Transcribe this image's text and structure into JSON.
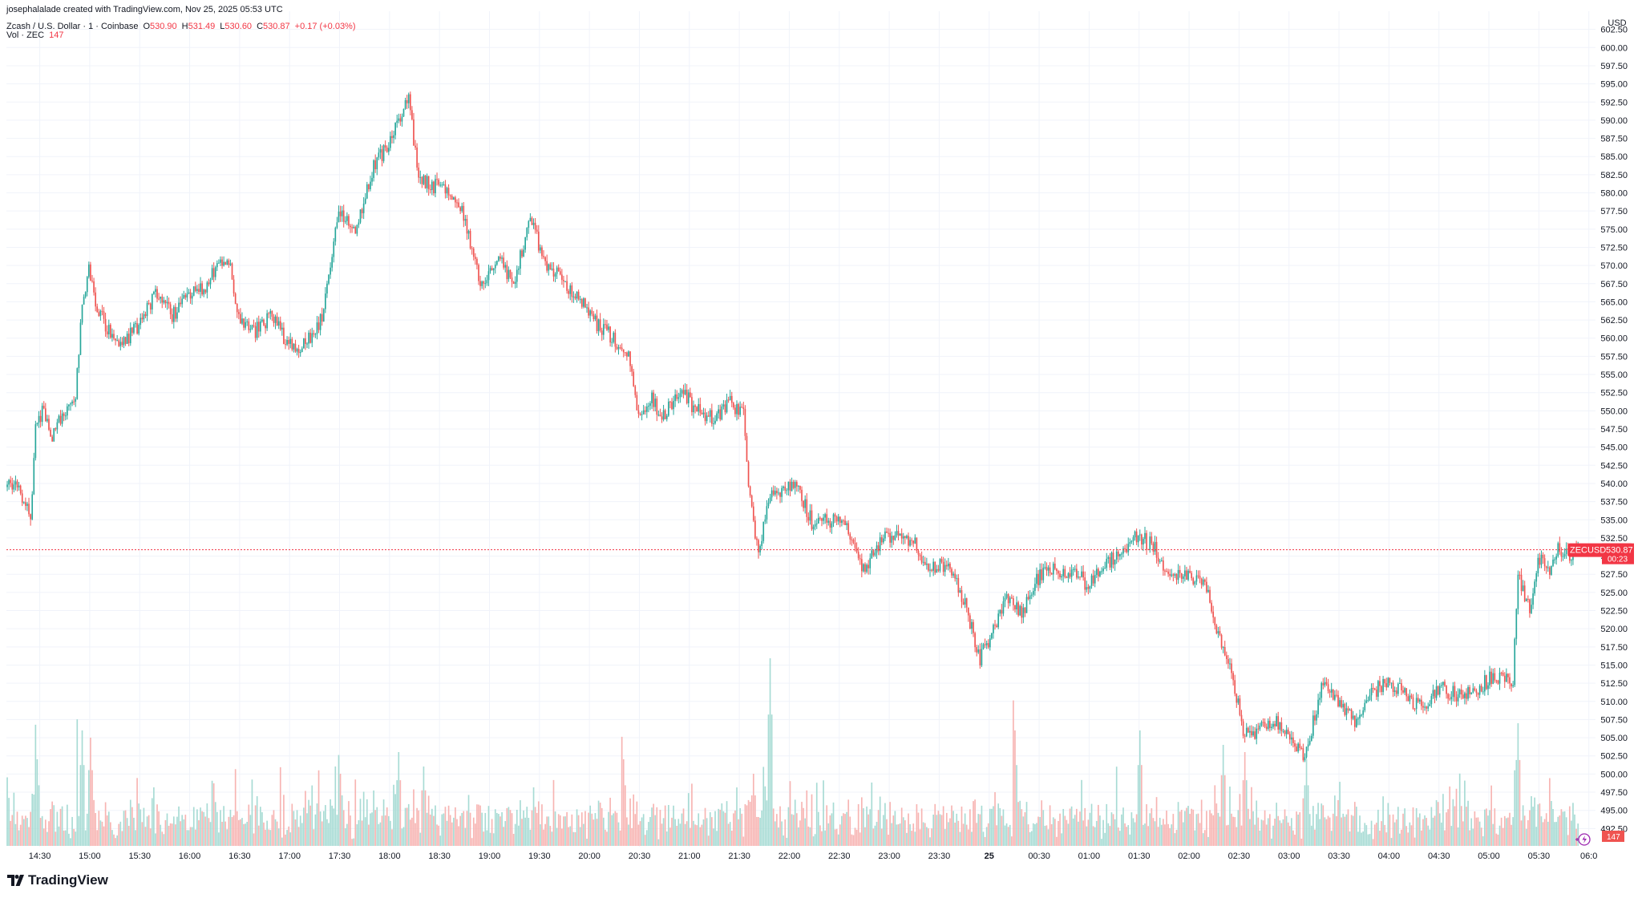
{
  "header": {
    "credit": "josephalalade created with TradingView.com, Nov 25, 2025 05:53 UTC",
    "symbol": "Zcash / U.S. Dollar · 1 · Coinbase",
    "o_label": "O",
    "o_value": "530.90",
    "h_label": "H",
    "h_value": "531.49",
    "l_label": "L",
    "l_value": "530.60",
    "c_label": "C",
    "c_value": "530.87",
    "change": "+0.17 (+0.03%)",
    "vol_label": "Vol · ZEC",
    "vol_value": "147"
  },
  "price_tag": {
    "symbol": "ZECUSD",
    "price": "530.87",
    "countdown": "00:23"
  },
  "volume_tag": "147",
  "logo_text": "TradingView",
  "colors": {
    "up": "#26a69a",
    "down": "#ef5350",
    "vol_up": "#a7dbd4",
    "vol_down": "#f7b4b2",
    "price_line": "#f23645",
    "grid": "#f0f3fa",
    "text": "#131722"
  },
  "chart_data": {
    "type": "candlestick",
    "currency": "USD",
    "ylim": [
      490.0,
      605.0
    ],
    "y_ticks": [
      "602.50",
      "600.00",
      "597.50",
      "595.00",
      "592.50",
      "590.00",
      "587.50",
      "585.00",
      "582.50",
      "580.00",
      "577.50",
      "575.00",
      "572.50",
      "570.00",
      "567.50",
      "565.00",
      "562.50",
      "560.00",
      "557.50",
      "555.00",
      "552.50",
      "550.00",
      "547.50",
      "545.00",
      "542.50",
      "540.00",
      "537.50",
      "535.00",
      "532.50",
      "530.00",
      "527.50",
      "525.00",
      "522.50",
      "520.00",
      "517.50",
      "515.00",
      "512.50",
      "510.00",
      "507.50",
      "505.00",
      "502.50",
      "500.00",
      "497.50",
      "495.00",
      "492.50"
    ],
    "x_ticks": [
      "14:30",
      "15:00",
      "15:30",
      "16:00",
      "16:30",
      "17:00",
      "17:30",
      "18:00",
      "18:30",
      "19:00",
      "19:30",
      "20:00",
      "20:30",
      "21:00",
      "21:30",
      "22:00",
      "22:30",
      "23:00",
      "23:30",
      "25",
      "00:30",
      "01:00",
      "01:30",
      "02:00",
      "02:30",
      "03:00",
      "03:30",
      "04:00",
      "04:30",
      "05:00",
      "05:30",
      "06:0"
    ],
    "x_start": "14:10",
    "x_end": "06:04",
    "grid": true,
    "last_price": 530.87,
    "keypoints": [
      {
        "t": "14:10",
        "p": 539.5
      },
      {
        "t": "14:15",
        "p": 540.0
      },
      {
        "t": "14:20",
        "p": 538.0
      },
      {
        "t": "14:25",
        "p": 535.0
      },
      {
        "t": "14:28",
        "p": 548.0
      },
      {
        "t": "14:33",
        "p": 550.0
      },
      {
        "t": "14:38",
        "p": 546.0
      },
      {
        "t": "14:45",
        "p": 550.0
      },
      {
        "t": "14:52",
        "p": 552.0
      },
      {
        "t": "14:55",
        "p": 562.0
      },
      {
        "t": "15:00",
        "p": 570.0
      },
      {
        "t": "15:05",
        "p": 564.0
      },
      {
        "t": "15:12",
        "p": 561.0
      },
      {
        "t": "15:20",
        "p": 559.0
      },
      {
        "t": "15:30",
        "p": 562.0
      },
      {
        "t": "15:40",
        "p": 566.0
      },
      {
        "t": "15:50",
        "p": 563.0
      },
      {
        "t": "16:00",
        "p": 566.0
      },
      {
        "t": "16:10",
        "p": 567.0
      },
      {
        "t": "16:20",
        "p": 571.0
      },
      {
        "t": "16:25",
        "p": 570.0
      },
      {
        "t": "16:30",
        "p": 563.0
      },
      {
        "t": "16:40",
        "p": 561.0
      },
      {
        "t": "16:50",
        "p": 563.0
      },
      {
        "t": "17:00",
        "p": 559.0
      },
      {
        "t": "17:10",
        "p": 559.0
      },
      {
        "t": "17:20",
        "p": 563.0
      },
      {
        "t": "17:25",
        "p": 570.0
      },
      {
        "t": "17:30",
        "p": 578.0
      },
      {
        "t": "17:40",
        "p": 574.0
      },
      {
        "t": "17:50",
        "p": 583.0
      },
      {
        "t": "18:00",
        "p": 587.0
      },
      {
        "t": "18:05",
        "p": 590.0
      },
      {
        "t": "18:12",
        "p": 593.0
      },
      {
        "t": "18:18",
        "p": 582.0
      },
      {
        "t": "18:25",
        "p": 581.0
      },
      {
        "t": "18:35",
        "p": 581.0
      },
      {
        "t": "18:45",
        "p": 577.0
      },
      {
        "t": "18:50",
        "p": 572.0
      },
      {
        "t": "18:55",
        "p": 567.0
      },
      {
        "t": "19:05",
        "p": 571.0
      },
      {
        "t": "19:15",
        "p": 568.0
      },
      {
        "t": "19:25",
        "p": 576.0
      },
      {
        "t": "19:35",
        "p": 570.0
      },
      {
        "t": "19:45",
        "p": 568.0
      },
      {
        "t": "19:55",
        "p": 565.0
      },
      {
        "t": "20:05",
        "p": 562.0
      },
      {
        "t": "20:15",
        "p": 560.0
      },
      {
        "t": "20:25",
        "p": 557.0
      },
      {
        "t": "20:30",
        "p": 549.0
      },
      {
        "t": "20:37",
        "p": 552.0
      },
      {
        "t": "20:45",
        "p": 549.0
      },
      {
        "t": "20:55",
        "p": 553.0
      },
      {
        "t": "21:05",
        "p": 550.0
      },
      {
        "t": "21:15",
        "p": 549.0
      },
      {
        "t": "21:25",
        "p": 551.0
      },
      {
        "t": "21:33",
        "p": 550.0
      },
      {
        "t": "21:36",
        "p": 540.0
      },
      {
        "t": "21:42",
        "p": 530.0
      },
      {
        "t": "21:48",
        "p": 538.0
      },
      {
        "t": "21:55",
        "p": 539.0
      },
      {
        "t": "22:05",
        "p": 540.0
      },
      {
        "t": "22:15",
        "p": 534.0
      },
      {
        "t": "22:25",
        "p": 535.0
      },
      {
        "t": "22:35",
        "p": 534.0
      },
      {
        "t": "22:45",
        "p": 528.0
      },
      {
        "t": "22:55",
        "p": 532.0
      },
      {
        "t": "23:05",
        "p": 533.0
      },
      {
        "t": "23:15",
        "p": 532.0
      },
      {
        "t": "23:25",
        "p": 528.0
      },
      {
        "t": "23:35",
        "p": 529.0
      },
      {
        "t": "23:45",
        "p": 524.0
      },
      {
        "t": "23:55",
        "p": 516.0
      },
      {
        "t": "00:00",
        "p": 518.0
      },
      {
        "t": "00:10",
        "p": 524.0
      },
      {
        "t": "00:20",
        "p": 522.0
      },
      {
        "t": "00:30",
        "p": 527.0
      },
      {
        "t": "00:40",
        "p": 528.0
      },
      {
        "t": "00:50",
        "p": 528.0
      },
      {
        "t": "01:00",
        "p": 526.0
      },
      {
        "t": "01:10",
        "p": 529.0
      },
      {
        "t": "01:20",
        "p": 530.0
      },
      {
        "t": "01:30",
        "p": 533.0
      },
      {
        "t": "01:40",
        "p": 531.0
      },
      {
        "t": "01:50",
        "p": 527.0
      },
      {
        "t": "02:00",
        "p": 527.0
      },
      {
        "t": "02:10",
        "p": 527.0
      },
      {
        "t": "02:15",
        "p": 521.0
      },
      {
        "t": "02:22",
        "p": 517.0
      },
      {
        "t": "02:28",
        "p": 512.0
      },
      {
        "t": "02:33",
        "p": 506.0
      },
      {
        "t": "02:40",
        "p": 505.0
      },
      {
        "t": "02:45",
        "p": 507.0
      },
      {
        "t": "02:55",
        "p": 507.0
      },
      {
        "t": "03:05",
        "p": 504.0
      },
      {
        "t": "03:10",
        "p": 502.0
      },
      {
        "t": "03:20",
        "p": 512.0
      },
      {
        "t": "03:30",
        "p": 510.0
      },
      {
        "t": "03:40",
        "p": 507.0
      },
      {
        "t": "03:50",
        "p": 511.0
      },
      {
        "t": "04:00",
        "p": 513.0
      },
      {
        "t": "04:10",
        "p": 511.0
      },
      {
        "t": "04:20",
        "p": 509.0
      },
      {
        "t": "04:30",
        "p": 512.0
      },
      {
        "t": "04:40",
        "p": 511.0
      },
      {
        "t": "04:50",
        "p": 511.0
      },
      {
        "t": "05:00",
        "p": 513.0
      },
      {
        "t": "05:15",
        "p": 513.0
      },
      {
        "t": "05:18",
        "p": 527.0
      },
      {
        "t": "05:25",
        "p": 523.0
      },
      {
        "t": "05:32",
        "p": 531.0
      },
      {
        "t": "05:37",
        "p": 527.0
      },
      {
        "t": "05:42",
        "p": 531.0
      },
      {
        "t": "05:47",
        "p": 530.0
      },
      {
        "t": "05:53",
        "p": 530.87
      }
    ],
    "volume_spikes": [
      {
        "t": "14:10",
        "v": 95
      },
      {
        "t": "14:28",
        "v": 120
      },
      {
        "t": "14:55",
        "v": 160
      },
      {
        "t": "15:00",
        "v": 150
      },
      {
        "t": "17:30",
        "v": 100
      },
      {
        "t": "18:05",
        "v": 130
      },
      {
        "t": "18:20",
        "v": 110
      },
      {
        "t": "20:20",
        "v": 120
      },
      {
        "t": "21:38",
        "v": 100
      },
      {
        "t": "21:48",
        "v": 260
      },
      {
        "t": "00:15",
        "v": 160
      },
      {
        "t": "01:30",
        "v": 160
      },
      {
        "t": "02:20",
        "v": 140
      },
      {
        "t": "02:33",
        "v": 130
      },
      {
        "t": "03:10",
        "v": 120
      },
      {
        "t": "05:17",
        "v": 170
      }
    ]
  }
}
